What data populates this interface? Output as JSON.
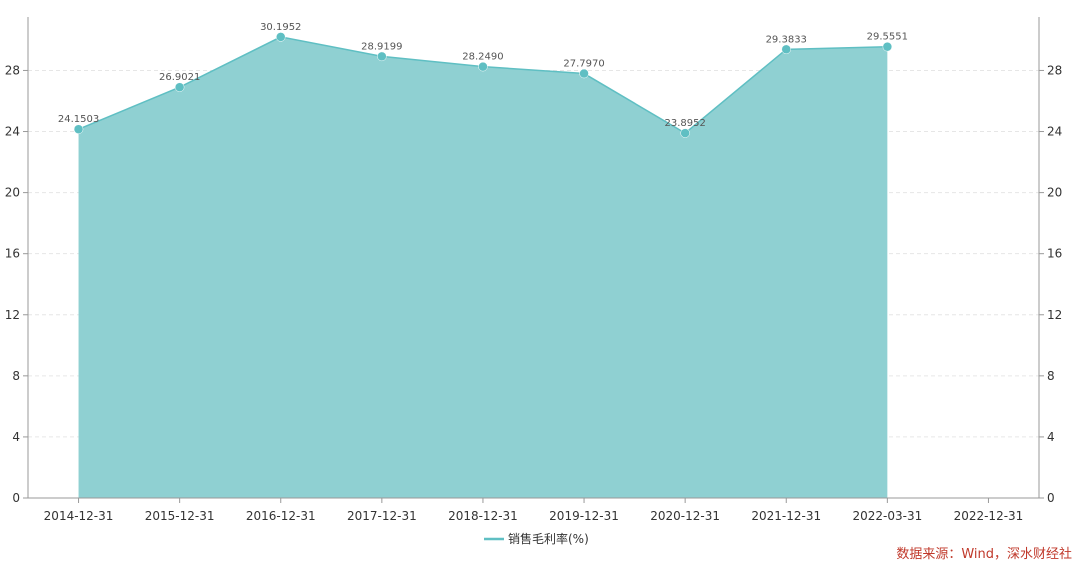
{
  "chart_data": {
    "type": "area",
    "categories": [
      "2014-12-31",
      "2015-12-31",
      "2016-12-31",
      "2017-12-31",
      "2018-12-31",
      "2019-12-31",
      "2020-12-31",
      "2021-12-31",
      "2022-03-31",
      "2022-12-31"
    ],
    "series": [
      {
        "name": "销售毛利率(%)",
        "values": [
          24.1503,
          26.9021,
          30.1952,
          28.9199,
          28.249,
          27.797,
          23.8952,
          29.3833,
          29.5551,
          null
        ],
        "labels": [
          "24.1503",
          "26.9021",
          "30.1952",
          "28.9199",
          "28.2490",
          "27.7970",
          "23.8952",
          "29.3833",
          "29.5551",
          ""
        ]
      }
    ],
    "ylim": [
      0,
      31.5
    ],
    "yticks": [
      0,
      4,
      8,
      12,
      16,
      20,
      24,
      28
    ],
    "grid": true,
    "legend_position": "bottom-center",
    "colors": {
      "line": "#5fbfc3",
      "fill": "#8fd0d2",
      "grid": "#e6e6e6",
      "axis": "#999999",
      "source": "#c0392b"
    }
  },
  "source": "数据来源：Wind，深水财经社"
}
